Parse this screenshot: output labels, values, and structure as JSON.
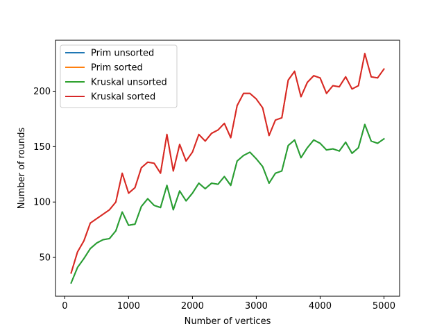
{
  "chart_data": {
    "type": "line",
    "title": "",
    "xlabel": "Number of vertices",
    "ylabel": "Number of rounds",
    "xlim": [
      -145,
      5245
    ],
    "ylim": [
      15,
      246
    ],
    "xticks": [
      0,
      1000,
      2000,
      3000,
      4000,
      5000
    ],
    "yticks": [
      50,
      100,
      150,
      200
    ],
    "grid": false,
    "legend_position": "upper left",
    "x": [
      100,
      200,
      300,
      400,
      500,
      600,
      700,
      800,
      900,
      1000,
      1100,
      1200,
      1300,
      1400,
      1500,
      1600,
      1700,
      1800,
      1900,
      2000,
      2100,
      2200,
      2300,
      2400,
      2500,
      2600,
      2700,
      2800,
      2900,
      3000,
      3100,
      3200,
      3300,
      3400,
      3500,
      3600,
      3700,
      3800,
      3900,
      4000,
      4100,
      4200,
      4300,
      4400,
      4500,
      4600,
      4700,
      4800,
      4900,
      5000
    ],
    "series": [
      {
        "name": "Prim unsorted",
        "color": "#1f77b4",
        "values": [
          27,
          41,
          49,
          58,
          63,
          66,
          67,
          74,
          91,
          79,
          80,
          96,
          103,
          97,
          95,
          115,
          93,
          110,
          101,
          108,
          117,
          112,
          117,
          116,
          123,
          115,
          137,
          142,
          145,
          139,
          132,
          117,
          126,
          128,
          151,
          156,
          140,
          149,
          156,
          153,
          147,
          148,
          146,
          154,
          144,
          149,
          170,
          155,
          153,
          157
        ]
      },
      {
        "name": "Prim sorted",
        "color": "#ff7f0e",
        "values": [
          36,
          55,
          65,
          81,
          85,
          89,
          93,
          100,
          126,
          108,
          113,
          131,
          136,
          135,
          126,
          161,
          128,
          152,
          137,
          145,
          161,
          155,
          162,
          165,
          171,
          158,
          187,
          198,
          198,
          193,
          185,
          160,
          174,
          176,
          210,
          218,
          195,
          208,
          214,
          212,
          198,
          205,
          204,
          213,
          202,
          205,
          234,
          213,
          212,
          220
        ]
      },
      {
        "name": "Kruskal unsorted",
        "color": "#2ca02c",
        "values": [
          27,
          41,
          49,
          58,
          63,
          66,
          67,
          74,
          91,
          79,
          80,
          96,
          103,
          97,
          95,
          115,
          93,
          110,
          101,
          108,
          117,
          112,
          117,
          116,
          123,
          115,
          137,
          142,
          145,
          139,
          132,
          117,
          126,
          128,
          151,
          156,
          140,
          149,
          156,
          153,
          147,
          148,
          146,
          154,
          144,
          149,
          170,
          155,
          153,
          157
        ]
      },
      {
        "name": "Kruskal sorted",
        "color": "#d62728",
        "values": [
          36,
          55,
          65,
          81,
          85,
          89,
          93,
          100,
          126,
          108,
          113,
          131,
          136,
          135,
          126,
          161,
          128,
          152,
          137,
          145,
          161,
          155,
          162,
          165,
          171,
          158,
          187,
          198,
          198,
          193,
          185,
          160,
          174,
          176,
          210,
          218,
          195,
          208,
          214,
          212,
          198,
          205,
          204,
          213,
          202,
          205,
          234,
          213,
          212,
          220
        ]
      }
    ]
  }
}
